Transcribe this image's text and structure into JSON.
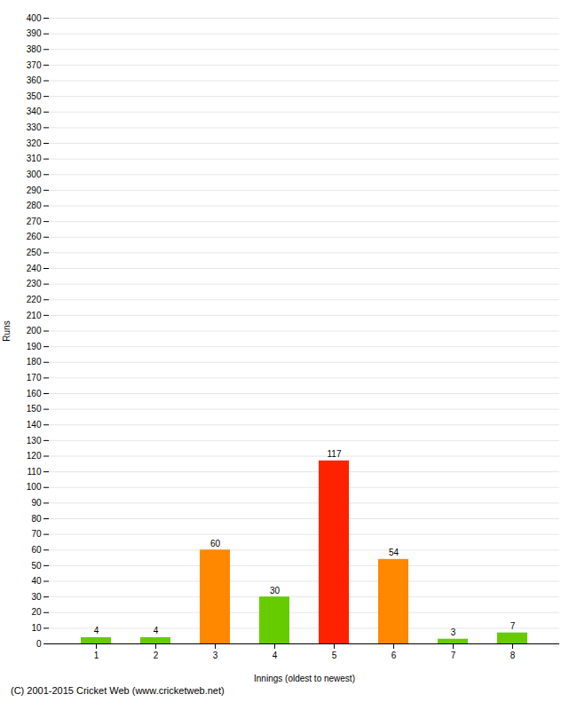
{
  "chart_data": {
    "type": "bar",
    "xlabel": "Innings (oldest to newest)",
    "ylabel": "Runs",
    "caption": "(C) 2001-2015 Cricket Web (www.cricketweb.net)",
    "categories": [
      1,
      2,
      3,
      4,
      5,
      6,
      7,
      8
    ],
    "values": [
      4,
      4,
      60,
      30,
      117,
      54,
      3,
      7
    ],
    "colors": [
      "#66cc00",
      "#66cc00",
      "#ff8800",
      "#66cc00",
      "#ff2200",
      "#ff8800",
      "#66cc00",
      "#66cc00"
    ],
    "ylim": [
      0,
      400
    ],
    "yticks": [
      0,
      10,
      20,
      30,
      40,
      50,
      60,
      70,
      80,
      90,
      100,
      110,
      120,
      130,
      140,
      150,
      160,
      170,
      180,
      190,
      200,
      210,
      220,
      230,
      240,
      250,
      260,
      270,
      280,
      290,
      300,
      310,
      320,
      330,
      340,
      350,
      360,
      370,
      380,
      390,
      400
    ],
    "grid": true,
    "data_labels": true
  }
}
